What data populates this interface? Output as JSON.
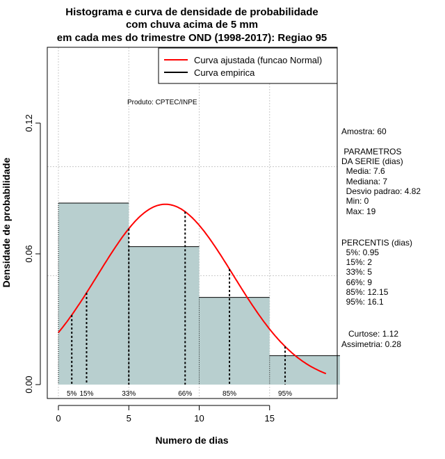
{
  "chart_data": {
    "type": "histogram",
    "title_lines": [
      "Histograma e curva de densidade de probabilidade",
      "com chuva acima de 5 mm",
      "em cada mes do trimestre OND (1998-2017): Regiao 95"
    ],
    "xlabel": "Numero de dias",
    "ylabel": "Densidade de probabilidade",
    "xlim": [
      0,
      20
    ],
    "ylim": [
      0,
      0.15
    ],
    "xticks": [
      0,
      5,
      10,
      15
    ],
    "yticks": [
      0.0,
      0.06,
      0.12
    ],
    "ytick_labels": [
      "0.00",
      "0.06",
      "0.12"
    ],
    "grid_x": [
      0,
      5,
      10,
      15
    ],
    "grid_y": [
      0.05,
      0.1
    ],
    "bars": [
      {
        "x0": 0,
        "x1": 5,
        "density": 0.0833
      },
      {
        "x0": 5,
        "x1": 10,
        "density": 0.0633
      },
      {
        "x0": 10,
        "x1": 15,
        "density": 0.04
      },
      {
        "x0": 15,
        "x1": 20,
        "density": 0.0133
      }
    ],
    "normal_curve": {
      "mean": 7.6,
      "sd": 4.82,
      "x_from": 0,
      "x_to": 19,
      "color": "#ff0000"
    },
    "bar_color": "#b8cfcf",
    "percentile_lines": [
      {
        "label": "5%",
        "x": 0.95
      },
      {
        "label": "15%",
        "x": 2
      },
      {
        "label": "33%",
        "x": 5
      },
      {
        "label": "66%",
        "x": 9
      },
      {
        "label": "85%",
        "x": 12.15
      },
      {
        "label": "95%",
        "x": 16.1
      }
    ],
    "legend": [
      {
        "label": "Curva ajustada (funcao Normal)",
        "color": "#ff0000"
      },
      {
        "label": "Curva empirica",
        "color": "#000000"
      }
    ],
    "legend_position": "top-right",
    "product_note": "Produto: CPTEC/INPE",
    "stats_text": [
      "Amostra: 60",
      " PARAMETROS",
      "DA SERIE (dias)",
      "  Media: 7.6",
      "  Mediana: 7",
      "  Desvio padrao: 4.82",
      "  Min: 0",
      "  Max: 19",
      "PERCENTIS (dias)",
      "  5%: 0.95",
      "  15%: 2",
      "  33%: 5",
      "  66%: 9",
      "  85%: 12.15",
      "  95%: 16.1",
      "   Curtose: 1.12",
      "Assimetria: 0.28"
    ]
  }
}
